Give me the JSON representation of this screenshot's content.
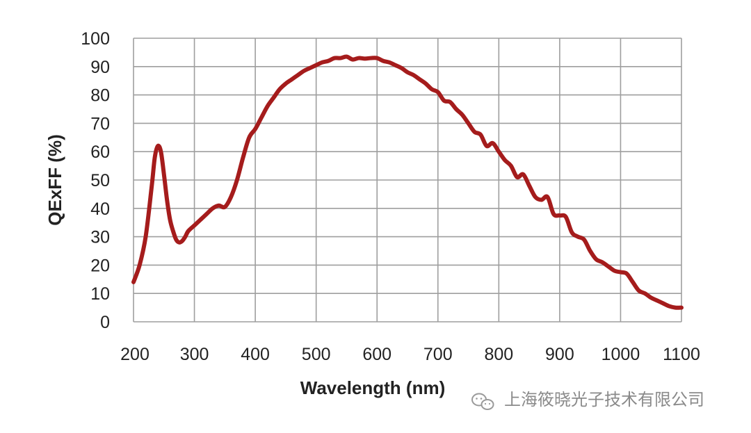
{
  "chart_data": {
    "type": "line",
    "title": "",
    "xlabel": "Wavelength (nm)",
    "ylabel": "QExFF (%)",
    "xlim": [
      200,
      1100
    ],
    "ylim": [
      0,
      100
    ],
    "xticks": [
      200,
      300,
      400,
      500,
      600,
      700,
      800,
      900,
      1000,
      1100
    ],
    "yticks": [
      0,
      10,
      20,
      30,
      40,
      50,
      60,
      70,
      80,
      90,
      100
    ],
    "grid": true,
    "series": [
      {
        "name": "QExFF",
        "color": "#a51c1c",
        "x": [
          200,
          210,
          220,
          230,
          235,
          240,
          245,
          250,
          255,
          260,
          265,
          270,
          275,
          280,
          285,
          290,
          300,
          310,
          320,
          330,
          340,
          350,
          360,
          370,
          380,
          390,
          400,
          410,
          420,
          430,
          440,
          450,
          460,
          470,
          480,
          490,
          500,
          510,
          520,
          530,
          540,
          550,
          560,
          570,
          580,
          590,
          600,
          610,
          620,
          630,
          640,
          650,
          660,
          670,
          680,
          690,
          700,
          710,
          720,
          730,
          740,
          750,
          760,
          770,
          780,
          790,
          800,
          810,
          820,
          830,
          840,
          850,
          860,
          870,
          880,
          890,
          900,
          910,
          920,
          930,
          940,
          950,
          960,
          970,
          980,
          990,
          1000,
          1010,
          1020,
          1030,
          1040,
          1050,
          1060,
          1070,
          1080,
          1090,
          1100
        ],
        "values": [
          14,
          20,
          30,
          48,
          58,
          62,
          60,
          52,
          43,
          36,
          32,
          29,
          28,
          28.5,
          30,
          32,
          34,
          36,
          38,
          40,
          41,
          40.5,
          44,
          50,
          58,
          65,
          68,
          72,
          76,
          79,
          82,
          84,
          85.5,
          87,
          88.5,
          89.5,
          90.5,
          91.5,
          92,
          93,
          93,
          93.5,
          92.5,
          93,
          92.8,
          93,
          93,
          92,
          91.5,
          90.5,
          89.5,
          88,
          87,
          85.5,
          84,
          82,
          81,
          78,
          77.5,
          75,
          73,
          70,
          67,
          66,
          62,
          63,
          60,
          57,
          55,
          51,
          52,
          48,
          44,
          43,
          44,
          38,
          37.5,
          37,
          31.5,
          30,
          29,
          25,
          22,
          21,
          19.5,
          18,
          17.5,
          17,
          14,
          11,
          10,
          8.5,
          7.5,
          6.5,
          5.5,
          5,
          5
        ]
      }
    ]
  },
  "watermark": {
    "text": "上海筱晓光子技术有限公司",
    "icon": "wechat-icon"
  }
}
